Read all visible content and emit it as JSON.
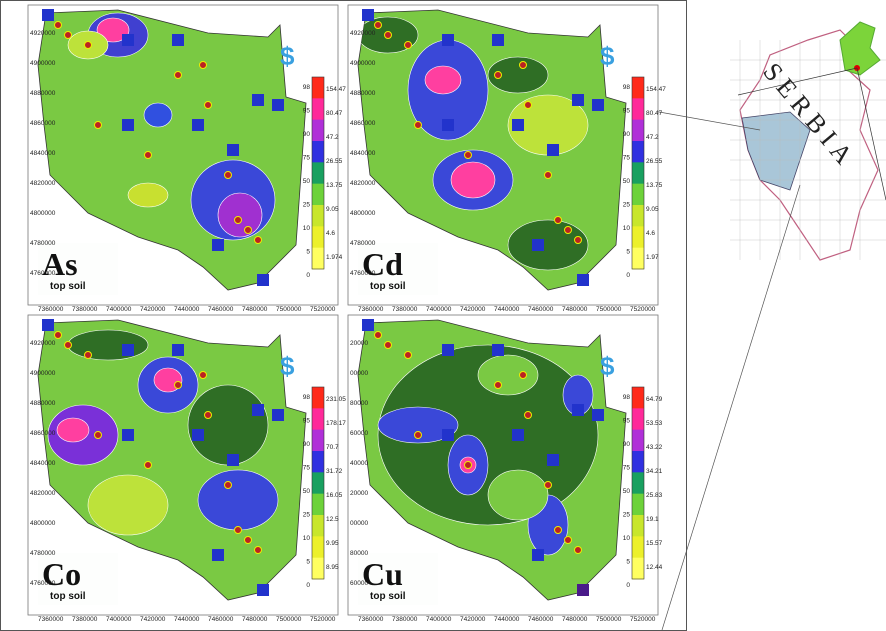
{
  "panels": [
    {
      "element": "As",
      "subtitle": "top soil",
      "legend_levels": [
        "98",
        "95",
        "90",
        "75",
        "50",
        "25",
        "10",
        "5",
        "0"
      ],
      "legend_values": [
        "154.47",
        "80.47",
        "47.2",
        "26.55",
        "13.75",
        "9.05",
        "4.6",
        "1.974"
      ],
      "y_labels": [
        "4920000",
        "4900000",
        "4880000",
        "4860000",
        "4840000",
        "4820000",
        "4800000",
        "4780000",
        "4760000"
      ],
      "x_labels": [
        "7360000",
        "7380000",
        "7400000",
        "7420000",
        "7440000",
        "7460000",
        "7480000",
        "7500000",
        "7520000"
      ]
    },
    {
      "element": "Cd",
      "subtitle": "top soil",
      "legend_levels": [
        "98",
        "95",
        "90",
        "75",
        "50",
        "25",
        "10",
        "5",
        "0"
      ],
      "legend_values": [
        "154.47",
        "80.47",
        "47.2",
        "26.55",
        "13.75",
        "9.05",
        "4.6",
        "1.97"
      ],
      "y_labels": [
        "4920000",
        "4900000",
        "4880000",
        "4860000",
        "4840000",
        "4820000",
        "4800000",
        "4780000",
        "4760000"
      ],
      "x_labels": [
        "7360000",
        "7380000",
        "7400000",
        "7420000",
        "7440000",
        "7460000",
        "7480000",
        "7500000",
        "7520000"
      ]
    },
    {
      "element": "Co",
      "subtitle": "top soil",
      "legend_levels": [
        "98",
        "95",
        "90",
        "75",
        "50",
        "25",
        "10",
        "5",
        "0"
      ],
      "legend_values": [
        "231.05",
        "178.17",
        "70.7",
        "31.72",
        "16.05",
        "12.5",
        "9.95",
        "8.95"
      ],
      "y_labels": [
        "4920000",
        "4900000",
        "4880000",
        "4860000",
        "4840000",
        "4820000",
        "4800000",
        "4780000",
        "4760000"
      ],
      "x_labels": [
        "7360000",
        "7380000",
        "7400000",
        "7420000",
        "7440000",
        "7460000",
        "7480000",
        "7500000",
        "7520000"
      ]
    },
    {
      "element": "Cu",
      "subtitle": "top soil",
      "legend_levels": [
        "98",
        "95",
        "90",
        "75",
        "50",
        "25",
        "10",
        "5",
        "0"
      ],
      "legend_values": [
        "64.79",
        "53.53",
        "43.22",
        "34.21",
        "25.83",
        "19.1",
        "15.57",
        "12.44"
      ],
      "y_labels": [
        "20000",
        "00000",
        "80000",
        "60000",
        "40000",
        "20000",
        "00000",
        "80000",
        "60000"
      ],
      "x_labels": [
        "7360000",
        "7380000",
        "7400000",
        "7420000",
        "7440000",
        "7460000",
        "7480000",
        "7500000",
        "7520000"
      ]
    }
  ],
  "inset": {
    "country": "SERBIA"
  }
}
